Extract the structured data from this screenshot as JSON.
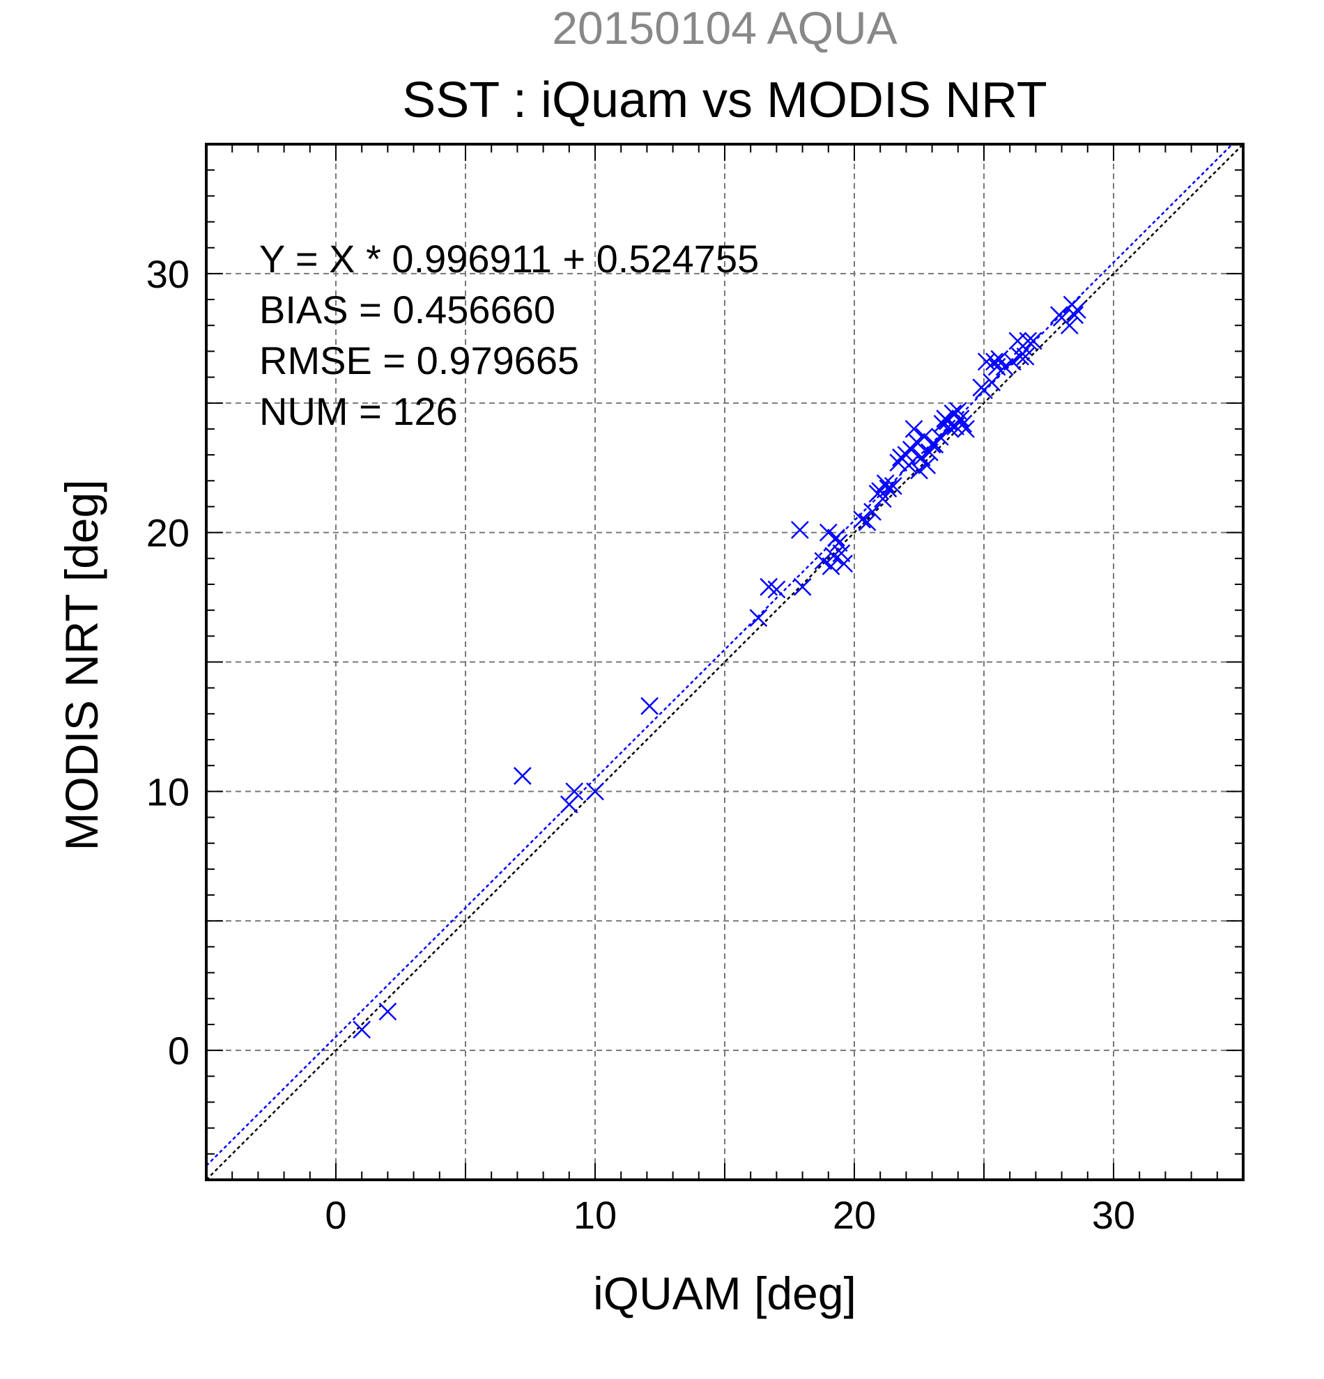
{
  "chart_data": {
    "type": "scatter",
    "title_top": "20150104 AQUA",
    "title": "SST : iQuam vs MODIS NRT",
    "xlabel": "iQUAM [deg]",
    "ylabel": "MODIS NRT [deg]",
    "xlim": [
      -5,
      35
    ],
    "ylim": [
      -5,
      35
    ],
    "x_major_ticks": [
      0,
      10,
      20,
      30
    ],
    "y_major_ticks": [
      0,
      10,
      20,
      30
    ],
    "x_tick_labels": [
      "0",
      "10",
      "20",
      "30"
    ],
    "y_tick_labels": [
      "0",
      "10",
      "20",
      "30"
    ],
    "grid_lines": [
      -5,
      0,
      5,
      10,
      15,
      20,
      25,
      30,
      35
    ],
    "minor_tick_step": 1,
    "grid": true,
    "stats": [
      "Y = X * 0.996911 + 0.524755",
      "BIAS = 0.456660",
      "RMSE = 0.979665",
      "NUM = 126"
    ],
    "fit": {
      "slope": 0.996911,
      "intercept": 0.524755,
      "color": "#0000ff"
    },
    "identity": {
      "slope": 1,
      "intercept": 0,
      "color": "#000000"
    },
    "marker_color": "#0000ff",
    "series": [
      {
        "x": [
          1.0,
          2.0,
          7.2,
          9.0,
          9.2,
          10.0,
          12.1,
          16.3,
          16.7,
          17.0,
          17.9,
          18.0,
          18.8,
          19.0,
          19.1,
          19.2,
          19.3,
          19.4,
          19.5,
          19.6,
          20.3,
          20.5,
          20.7,
          20.9,
          21.0,
          21.1,
          21.2,
          21.3,
          21.5,
          21.7,
          21.8,
          22.0,
          22.1,
          22.2,
          22.3,
          22.4,
          22.5,
          22.6,
          22.7,
          22.8,
          22.9,
          23.0,
          23.1,
          23.3,
          23.4,
          23.5,
          23.6,
          23.7,
          23.8,
          23.9,
          24.0,
          24.1,
          24.2,
          24.3,
          24.9,
          25.0,
          25.1,
          25.3,
          25.4,
          25.5,
          25.6,
          25.8,
          26.1,
          26.3,
          26.4,
          26.5,
          26.6,
          26.7,
          26.9,
          27.9,
          28.0,
          28.3,
          28.4,
          28.5,
          28.6
        ],
        "y": [
          0.8,
          1.5,
          10.6,
          9.5,
          10.0,
          10.0,
          13.3,
          16.7,
          17.9,
          17.8,
          20.1,
          17.9,
          18.9,
          20.0,
          18.7,
          19.1,
          19.8,
          19.6,
          19.2,
          18.8,
          20.5,
          20.4,
          20.8,
          21.5,
          21.6,
          21.3,
          21.9,
          21.7,
          21.8,
          22.7,
          22.9,
          23.0,
          22.6,
          23.2,
          24.0,
          23.5,
          22.4,
          22.9,
          23.7,
          22.6,
          23.1,
          23.4,
          23.4,
          23.7,
          24.2,
          24.4,
          24.3,
          24.0,
          24.6,
          24.1,
          24.7,
          24.4,
          24.2,
          24.0,
          25.6,
          25.5,
          26.6,
          25.8,
          26.6,
          26.4,
          26.7,
          26.4,
          26.6,
          27.4,
          26.8,
          27.2,
          26.8,
          27.4,
          27.4,
          28.4,
          28.3,
          28.0,
          28.8,
          28.4,
          28.6
        ]
      }
    ]
  }
}
